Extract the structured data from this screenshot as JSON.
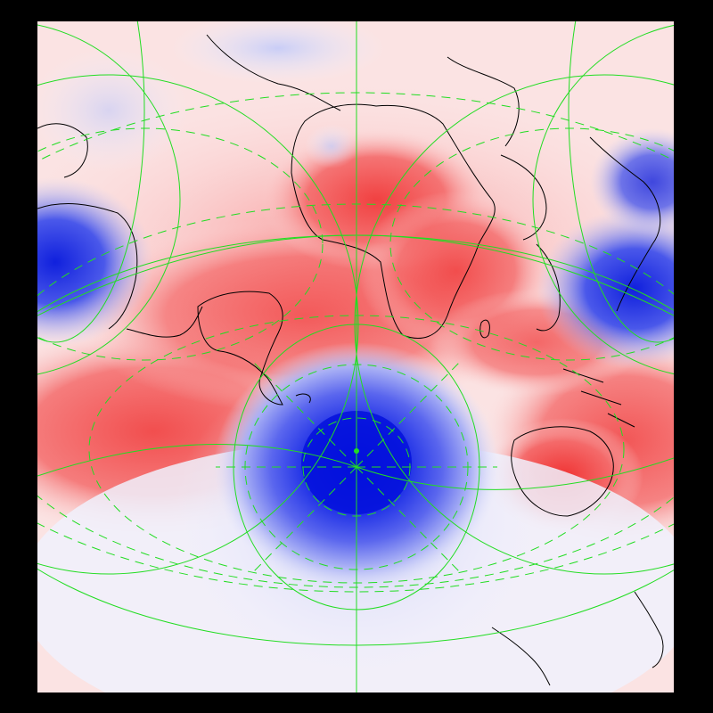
{
  "map": {
    "projection": "transverse-polar",
    "pole": "south-pole",
    "color_scale": {
      "low": "#0016e0",
      "mid": "#ffffff",
      "high": "#f23a3a"
    },
    "graticule": {
      "color": "#22dd22",
      "meridian_style": "solid",
      "parallel_style": "dashed"
    },
    "coastline_color": "#000000",
    "features": [
      "north-america-cold-anomaly",
      "asia-cold-anomaly",
      "antarctica-cold-anomaly",
      "australia-warm-anomaly",
      "africa-warm-anomaly",
      "south-america-warm-anomaly"
    ]
  }
}
